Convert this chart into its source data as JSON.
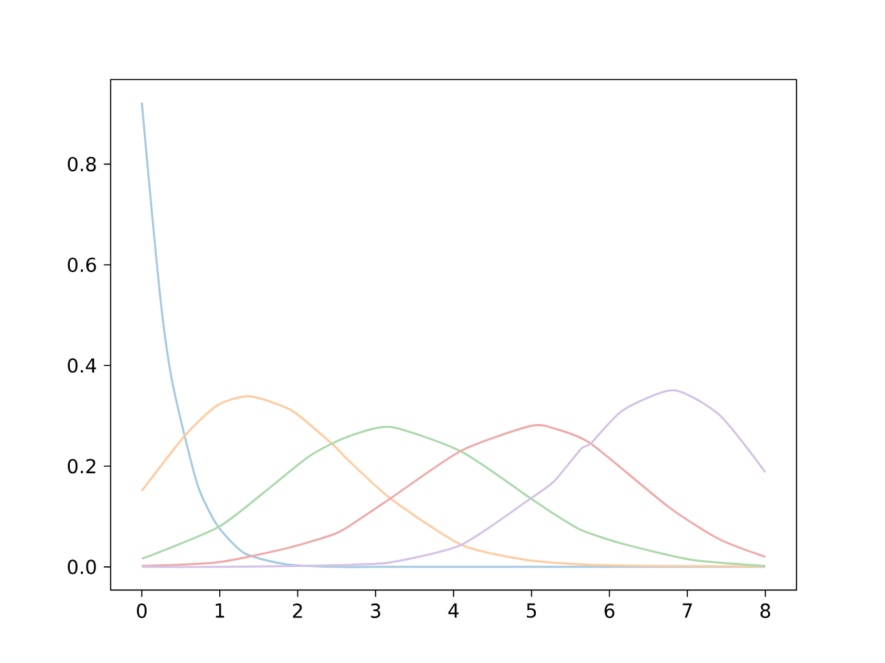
{
  "chart_data": {
    "type": "line",
    "xlim": [
      -0.4,
      8.4
    ],
    "ylim": [
      -0.046,
      0.968
    ],
    "xticks": [
      0,
      1,
      2,
      3,
      4,
      5,
      6,
      7,
      8
    ],
    "yticks": [
      {
        "value": 0,
        "label": "0.0"
      },
      {
        "value": 0.2,
        "label": "0.2"
      },
      {
        "value": 0.4,
        "label": "0.4"
      },
      {
        "value": 0.6,
        "label": "0.6"
      },
      {
        "value": 0.8,
        "label": "0.8"
      }
    ],
    "grid": false,
    "marker": "none",
    "line_style": "solid",
    "series": [
      {
        "color": "#a5c9e1",
        "x": [
          0,
          0.14,
          0.26,
          0.38,
          0.555,
          0.73,
          0.97,
          1.32,
          1.86,
          2.5,
          3,
          4,
          5,
          6,
          7,
          8
        ],
        "values": [
          0.922,
          0.687,
          0.504,
          0.376,
          0.257,
          0.156,
          0.082,
          0.027,
          0.005,
          0,
          0,
          0,
          0,
          0,
          0,
          0
        ]
      },
      {
        "color": "#ffcb9f",
        "x": [
          0,
          0.555,
          0.97,
          1.38,
          1.92,
          2.45,
          2.63,
          3.19,
          4.1,
          4.93,
          5.64,
          6.5,
          8
        ],
        "values": [
          0.151,
          0.261,
          0.321,
          0.339,
          0.311,
          0.243,
          0.215,
          0.136,
          0.044,
          0.014,
          0.005,
          0.002,
          0.001
        ]
      },
      {
        "color": "#abd9ab",
        "x": [
          0,
          0.97,
          1.56,
          2.15,
          2.63,
          3.19,
          4.1,
          4.99,
          5.29,
          5.64,
          6.17,
          7.06,
          8
        ],
        "values": [
          0.016,
          0.078,
          0.147,
          0.22,
          0.258,
          0.278,
          0.229,
          0.136,
          0.105,
          0.073,
          0.046,
          0.014,
          0.002
        ]
      },
      {
        "color": "#efa9a9",
        "x": [
          0,
          0.97,
          1.86,
          2.45,
          2.63,
          3.19,
          4.1,
          4.99,
          5.29,
          5.76,
          6.76,
          7.41,
          8
        ],
        "values": [
          0.002,
          0.009,
          0.037,
          0.064,
          0.078,
          0.136,
          0.231,
          0.28,
          0.275,
          0.245,
          0.119,
          0.055,
          0.02
        ]
      },
      {
        "color": "#d4c2e5",
        "x": [
          0,
          1,
          2,
          2.6,
          3.19,
          4.1,
          4.99,
          5.29,
          5.64,
          5.76,
          6.17,
          6.82,
          7.41,
          8
        ],
        "values": [
          0,
          0,
          0.002,
          0.004,
          0.009,
          0.044,
          0.136,
          0.17,
          0.235,
          0.245,
          0.311,
          0.351,
          0.302,
          0.188
        ]
      }
    ]
  }
}
